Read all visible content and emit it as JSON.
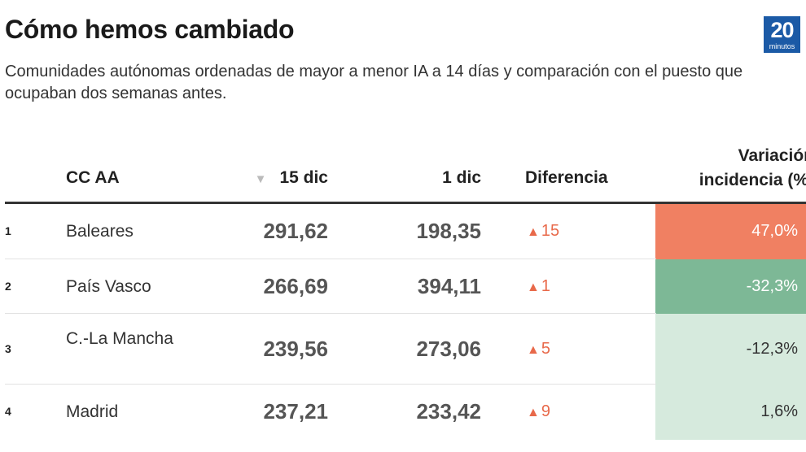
{
  "title": "Cómo hemos cambiado",
  "subtitle": "Comunidades autónomas ordenadas de mayor a menor IA a 14 días y comparación con el puesto que ocupaban dos semanas antes.",
  "logo": {
    "number": "20",
    "word": "minutos"
  },
  "icons": {
    "sort": "sort-down-triangle-icon",
    "rank_change": "triangle-up-icon"
  },
  "colors": {
    "up_arrow": "#e8694a",
    "variation_high_increase": "#f08062",
    "variation_strong_decrease": "#7db896",
    "variation_small_change": "#d6eadd"
  },
  "chart_data": {
    "type": "table",
    "title": "Cómo hemos cambiado",
    "subtitle": "Comunidades autónomas ordenadas de mayor a menor IA a 14 días y comparación con el puesto que ocupaban dos semanas antes.",
    "sorted_by": "15 dic",
    "columns": {
      "rank": "",
      "ccaa": "CC AA",
      "dec15": "15 dic",
      "dec1": "1 dic",
      "diff": "Diferencia",
      "variation_line1": "Variación",
      "variation_line2": "incidencia (%)"
    },
    "rows": [
      {
        "rank": "1",
        "ccaa": "Baleares",
        "dec15": "291,62",
        "dec1": "198,35",
        "diff_arrow": "▲",
        "diff": "15",
        "variation": "47,0%",
        "variation_value": 47.0
      },
      {
        "rank": "2",
        "ccaa": "País Vasco",
        "dec15": "266,69",
        "dec1": "394,11",
        "diff_arrow": "▲",
        "diff": "1",
        "variation": "-32,3%",
        "variation_value": -32.3
      },
      {
        "rank": "3",
        "ccaa": "C.-La Mancha",
        "dec15": "239,56",
        "dec1": "273,06",
        "diff_arrow": "▲",
        "diff": "5",
        "variation": "-12,3%",
        "variation_value": -12.3
      },
      {
        "rank": "4",
        "ccaa": "Madrid",
        "dec15": "237,21",
        "dec1": "233,42",
        "diff_arrow": "▲",
        "diff": "9",
        "variation": "1,6%",
        "variation_value": 1.6
      }
    ]
  }
}
